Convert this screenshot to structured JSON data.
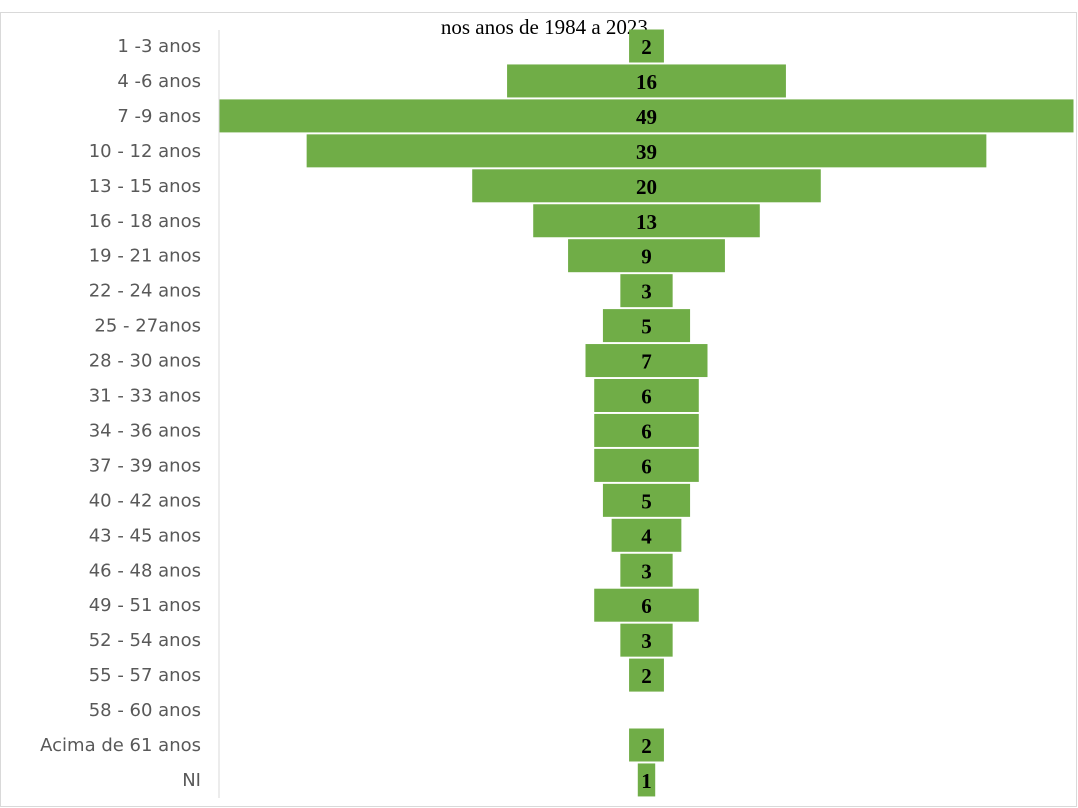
{
  "chart_data": {
    "type": "bar",
    "orientation": "horizontal-centered",
    "title": "nos anos de 1984 a 2023.",
    "categories": [
      "1 -3 anos",
      "4 -6 anos",
      "7 -9 anos",
      "10 - 12 anos",
      "13 - 15 anos",
      "16 - 18 anos",
      "19 - 21 anos",
      "22 - 24 anos",
      "25 - 27anos",
      "28 - 30 anos",
      "31 - 33 anos",
      "34 - 36 anos",
      "37 - 39 anos",
      "40 - 42 anos",
      "43 - 45 anos",
      "46 - 48 anos",
      "49 - 51 anos",
      "52 - 54 anos",
      "55 - 57 anos",
      "58 - 60 anos",
      "Acima  de 61 anos",
      "NI"
    ],
    "values": [
      2,
      16,
      49,
      39,
      20,
      13,
      9,
      3,
      5,
      7,
      6,
      6,
      6,
      5,
      4,
      3,
      6,
      3,
      2,
      null,
      2,
      1
    ],
    "data_labels": true,
    "bar_color": "#70AD47",
    "grid": false,
    "legend": "none"
  }
}
